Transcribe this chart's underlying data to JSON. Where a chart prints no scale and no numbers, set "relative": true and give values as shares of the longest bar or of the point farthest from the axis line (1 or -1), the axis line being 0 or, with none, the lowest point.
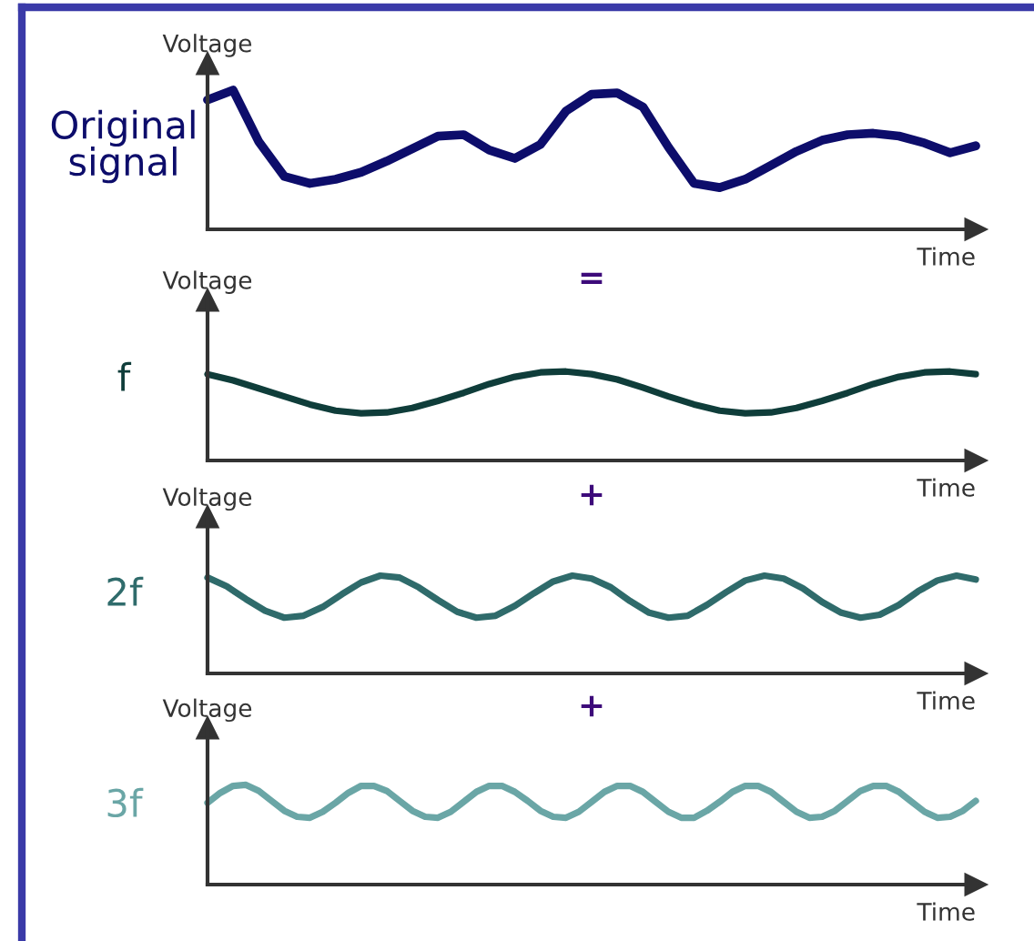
{
  "chart_data": [
    {
      "type": "line",
      "relative": true,
      "title": "Original signal",
      "ylabel": "Voltage",
      "xlabel": "Time",
      "categories": [
        null,
        null,
        null,
        null,
        null,
        null,
        null,
        null,
        null,
        null,
        null,
        null,
        null,
        null,
        null,
        null,
        null,
        null,
        null,
        null,
        null,
        null,
        null,
        null,
        null,
        null,
        null,
        null,
        null,
        null,
        null
      ],
      "series": [
        {
          "color": "#0d0d6b",
          "values": [
            0.93,
            1.0,
            0.63,
            0.38,
            0.33,
            0.36,
            0.41,
            0.49,
            0.58,
            0.67,
            0.68,
            0.57,
            0.51,
            0.61,
            0.85,
            0.97,
            0.98,
            0.88,
            0.59,
            0.33,
            0.3,
            0.36,
            0.46,
            0.56,
            0.64,
            0.68,
            0.69,
            0.67,
            0.62,
            0.55,
            0.6
          ]
        }
      ]
    },
    {
      "type": "line",
      "relative": true,
      "title": "f",
      "ylabel": "Voltage",
      "xlabel": "Time",
      "annotations": [
        "="
      ],
      "categories": [
        null,
        null,
        null,
        null,
        null,
        null,
        null,
        null,
        null,
        null,
        null,
        null,
        null,
        null,
        null,
        null,
        null,
        null,
        null,
        null,
        null,
        null,
        null,
        null,
        null,
        null,
        null,
        null,
        null,
        null,
        null
      ],
      "series": [
        {
          "color": "#0f3d3a",
          "values": [
            0.97,
            0.9,
            0.81,
            0.72,
            0.63,
            0.56,
            0.53,
            0.54,
            0.59,
            0.67,
            0.76,
            0.86,
            0.94,
            0.99,
            1.0,
            0.97,
            0.91,
            0.82,
            0.72,
            0.63,
            0.56,
            0.53,
            0.54,
            0.59,
            0.67,
            0.76,
            0.86,
            0.94,
            0.99,
            1.0,
            0.97
          ]
        }
      ]
    },
    {
      "type": "line",
      "relative": true,
      "title": "2f",
      "ylabel": "Voltage",
      "xlabel": "Time",
      "annotations": [
        "+"
      ],
      "categories": [
        null,
        null,
        null,
        null,
        null,
        null,
        null,
        null,
        null,
        null,
        null,
        null,
        null,
        null,
        null,
        null,
        null,
        null,
        null,
        null,
        null,
        null,
        null,
        null,
        null,
        null,
        null,
        null,
        null,
        null,
        null,
        null,
        null,
        null,
        null,
        null,
        null,
        null,
        null,
        null,
        null
      ],
      "series": [
        {
          "color": "#2f6b6b",
          "values": [
            0.98,
            0.89,
            0.76,
            0.64,
            0.57,
            0.59,
            0.68,
            0.81,
            0.93,
            1.0,
            0.98,
            0.88,
            0.75,
            0.63,
            0.57,
            0.59,
            0.69,
            0.82,
            0.94,
            1.0,
            0.97,
            0.88,
            0.74,
            0.62,
            0.57,
            0.59,
            0.7,
            0.83,
            0.95,
            1.0,
            0.97,
            0.87,
            0.73,
            0.62,
            0.57,
            0.6,
            0.7,
            0.84,
            0.95,
            1.0,
            0.96
          ]
        }
      ]
    },
    {
      "type": "line",
      "relative": true,
      "title": "3f",
      "ylabel": "Voltage",
      "xlabel": "Time",
      "annotations": [
        "+"
      ],
      "categories": [
        null,
        null,
        null,
        null,
        null,
        null,
        null,
        null,
        null,
        null,
        null,
        null,
        null,
        null,
        null,
        null,
        null,
        null,
        null,
        null,
        null,
        null,
        null,
        null,
        null,
        null,
        null,
        null,
        null,
        null,
        null,
        null,
        null,
        null,
        null,
        null,
        null,
        null,
        null,
        null,
        null,
        null,
        null,
        null,
        null,
        null,
        null,
        null,
        null,
        null,
        null,
        null,
        null,
        null,
        null,
        null,
        null,
        null,
        null,
        null,
        null
      ],
      "series": [
        {
          "color": "#6aa6a6",
          "values": [
            0.82,
            0.92,
            0.99,
            1.0,
            0.94,
            0.84,
            0.74,
            0.68,
            0.67,
            0.73,
            0.82,
            0.92,
            0.99,
            0.99,
            0.94,
            0.84,
            0.74,
            0.68,
            0.67,
            0.73,
            0.83,
            0.93,
            0.99,
            0.99,
            0.93,
            0.84,
            0.74,
            0.68,
            0.67,
            0.73,
            0.83,
            0.93,
            0.99,
            0.99,
            0.93,
            0.83,
            0.73,
            0.67,
            0.67,
            0.74,
            0.83,
            0.93,
            0.99,
            0.99,
            0.93,
            0.83,
            0.73,
            0.67,
            0.68,
            0.74,
            0.84,
            0.94,
            0.99,
            0.99,
            0.93,
            0.83,
            0.73,
            0.67,
            0.68,
            0.74,
            0.84
          ]
        }
      ]
    }
  ]
}
